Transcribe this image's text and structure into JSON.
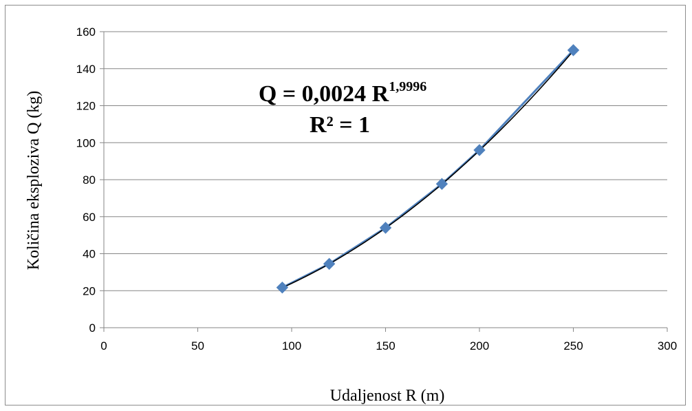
{
  "chart_data": {
    "type": "scatter",
    "title": "",
    "xlabel": "Udaljenost R (m)",
    "ylabel": "Količina eksploziva Q (kg)",
    "xlim": [
      0,
      300
    ],
    "ylim": [
      0,
      160
    ],
    "x_ticks": [
      "0",
      "50",
      "100",
      "150",
      "200",
      "250",
      "300"
    ],
    "y_ticks": [
      "0",
      "20",
      "40",
      "60",
      "80",
      "100",
      "120",
      "140",
      "160"
    ],
    "grid": "horizontal",
    "marker_color": "#4F81BD",
    "trendline_color": "#000000",
    "series": [
      {
        "x": [
          95,
          120,
          150,
          180,
          200,
          250
        ],
        "y": [
          21.7,
          34.5,
          54,
          77.7,
          96,
          150
        ]
      }
    ],
    "trendline": {
      "type": "power",
      "coefficient": 0.0024,
      "exponent": 1.9996
    },
    "annotation": {
      "equation_main": "Q = 0,0024 R",
      "equation_exponent": "1,9996",
      "r_squared": "R² = 1"
    }
  }
}
